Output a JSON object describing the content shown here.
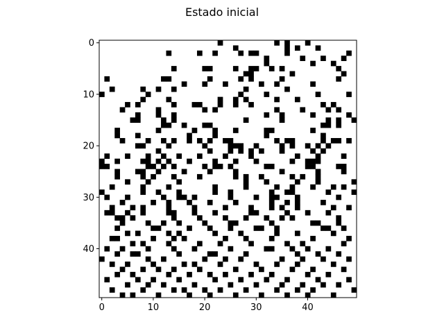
{
  "chart_data": {
    "type": "heatmap",
    "title": "Estado inicial",
    "xlabel": "",
    "ylabel": "",
    "grid_size": [
      50,
      50
    ],
    "x_ticks": [
      0,
      10,
      20,
      30,
      40
    ],
    "y_ticks": [
      0,
      10,
      20,
      30,
      40
    ],
    "colors": {
      "alive": "#000000",
      "dead": "#ffffff"
    },
    "grid": false,
    "alive_cells": [
      [
        0,
        23
      ],
      [
        0,
        34
      ],
      [
        0,
        36
      ],
      [
        0,
        40
      ],
      [
        1,
        26
      ],
      [
        1,
        36
      ],
      [
        1,
        38
      ],
      [
        1,
        42
      ],
      [
        2,
        13
      ],
      [
        2,
        19
      ],
      [
        2,
        22
      ],
      [
        2,
        27
      ],
      [
        2,
        29
      ],
      [
        2,
        30
      ],
      [
        2,
        36
      ],
      [
        2,
        48
      ],
      [
        3,
        32
      ],
      [
        3,
        39
      ],
      [
        3,
        43
      ],
      [
        3,
        47
      ],
      [
        4,
        32
      ],
      [
        4,
        41
      ],
      [
        4,
        45
      ],
      [
        5,
        14
      ],
      [
        5,
        20
      ],
      [
        5,
        21
      ],
      [
        5,
        26
      ],
      [
        5,
        29
      ],
      [
        5,
        30
      ],
      [
        5,
        33
      ],
      [
        5,
        35
      ],
      [
        5,
        46
      ],
      [
        6,
        28
      ],
      [
        6,
        29
      ],
      [
        6,
        37
      ],
      [
        6,
        47
      ],
      [
        7,
        1
      ],
      [
        7,
        12
      ],
      [
        7,
        13
      ],
      [
        7,
        21
      ],
      [
        7,
        27
      ],
      [
        7,
        29
      ],
      [
        7,
        35
      ],
      [
        7,
        46
      ],
      [
        8,
        16
      ],
      [
        8,
        20
      ],
      [
        8,
        24
      ],
      [
        8,
        31
      ],
      [
        8,
        34
      ],
      [
        8,
        41
      ],
      [
        9,
        2
      ],
      [
        9,
        8
      ],
      [
        9,
        11
      ],
      [
        9,
        14
      ],
      [
        9,
        28
      ],
      [
        9,
        36
      ],
      [
        10,
        0
      ],
      [
        10,
        9
      ],
      [
        10,
        27
      ],
      [
        10,
        32
      ],
      [
        10,
        42
      ],
      [
        10,
        48
      ],
      [
        11,
        8
      ],
      [
        11,
        13
      ],
      [
        11,
        23
      ],
      [
        11,
        26
      ],
      [
        11,
        28
      ],
      [
        11,
        34
      ],
      [
        11,
        38
      ],
      [
        12,
        5
      ],
      [
        12,
        7
      ],
      [
        12,
        14
      ],
      [
        12,
        18
      ],
      [
        12,
        19
      ],
      [
        12,
        23
      ],
      [
        12,
        26
      ],
      [
        12,
        29
      ],
      [
        12,
        43
      ],
      [
        12,
        45
      ],
      [
        13,
        4
      ],
      [
        13,
        11
      ],
      [
        13,
        20
      ],
      [
        13,
        22
      ],
      [
        13,
        34
      ],
      [
        13,
        39
      ],
      [
        13,
        44
      ],
      [
        13,
        46
      ],
      [
        14,
        7
      ],
      [
        14,
        11
      ],
      [
        14,
        14
      ],
      [
        14,
        32
      ],
      [
        14,
        35
      ],
      [
        14,
        41
      ],
      [
        14,
        48
      ],
      [
        15,
        6
      ],
      [
        15,
        7
      ],
      [
        15,
        12
      ],
      [
        15,
        14
      ],
      [
        15,
        28
      ],
      [
        15,
        35
      ],
      [
        15,
        44
      ],
      [
        15,
        46
      ],
      [
        15,
        49
      ],
      [
        16,
        12
      ],
      [
        16,
        13
      ],
      [
        16,
        16
      ],
      [
        16,
        20
      ],
      [
        16,
        21
      ],
      [
        16,
        43
      ],
      [
        16,
        44
      ],
      [
        16,
        46
      ],
      [
        17,
        3
      ],
      [
        17,
        11
      ],
      [
        17,
        18
      ],
      [
        17,
        22
      ],
      [
        17,
        26
      ],
      [
        17,
        32
      ],
      [
        17,
        33
      ],
      [
        17,
        41
      ],
      [
        18,
        3
      ],
      [
        18,
        7
      ],
      [
        18,
        17
      ],
      [
        18,
        22
      ],
      [
        18,
        32
      ],
      [
        18,
        43
      ],
      [
        19,
        4
      ],
      [
        19,
        9
      ],
      [
        19,
        12
      ],
      [
        19,
        14
      ],
      [
        19,
        17
      ],
      [
        19,
        19
      ],
      [
        19,
        21
      ],
      [
        19,
        24
      ],
      [
        19,
        25
      ],
      [
        19,
        34
      ],
      [
        19,
        36
      ],
      [
        19,
        37
      ],
      [
        19,
        43
      ],
      [
        19,
        45
      ],
      [
        19,
        46
      ],
      [
        19,
        48
      ],
      [
        20,
        7
      ],
      [
        20,
        8
      ],
      [
        20,
        13
      ],
      [
        20,
        20
      ],
      [
        20,
        25
      ],
      [
        20,
        26
      ],
      [
        20,
        27
      ],
      [
        20,
        30
      ],
      [
        20,
        35
      ],
      [
        20,
        37
      ],
      [
        20,
        40
      ],
      [
        20,
        42
      ],
      [
        20,
        44
      ],
      [
        21,
        11
      ],
      [
        21,
        21
      ],
      [
        21,
        25
      ],
      [
        21,
        27
      ],
      [
        21,
        29
      ],
      [
        21,
        31
      ],
      [
        21,
        35
      ],
      [
        21,
        41
      ],
      [
        21,
        43
      ],
      [
        22,
        1
      ],
      [
        22,
        5
      ],
      [
        22,
        9
      ],
      [
        22,
        12
      ],
      [
        22,
        15
      ],
      [
        22,
        19
      ],
      [
        22,
        24
      ],
      [
        22,
        29
      ],
      [
        22,
        38
      ],
      [
        22,
        42
      ],
      [
        22,
        47
      ],
      [
        23,
        0
      ],
      [
        23,
        3
      ],
      [
        23,
        8
      ],
      [
        23,
        9
      ],
      [
        23,
        11
      ],
      [
        23,
        13
      ],
      [
        23,
        17
      ],
      [
        23,
        22
      ],
      [
        23,
        26
      ],
      [
        23,
        30
      ],
      [
        23,
        37
      ],
      [
        23,
        40
      ],
      [
        23,
        41
      ],
      [
        23,
        42
      ],
      [
        24,
        0
      ],
      [
        24,
        1
      ],
      [
        24,
        9
      ],
      [
        24,
        10
      ],
      [
        24,
        12
      ],
      [
        24,
        14
      ],
      [
        24,
        20
      ],
      [
        24,
        22
      ],
      [
        24,
        23
      ],
      [
        24,
        25
      ],
      [
        24,
        32
      ],
      [
        24,
        33
      ],
      [
        24,
        40
      ],
      [
        24,
        41
      ],
      [
        24,
        46
      ],
      [
        24,
        47
      ],
      [
        25,
        3
      ],
      [
        25,
        7
      ],
      [
        25,
        8
      ],
      [
        25,
        11
      ],
      [
        25,
        16
      ],
      [
        25,
        21
      ],
      [
        25,
        26
      ],
      [
        25,
        35
      ],
      [
        25,
        42
      ],
      [
        25,
        47
      ],
      [
        26,
        3
      ],
      [
        26,
        8
      ],
      [
        26,
        10
      ],
      [
        26,
        14
      ],
      [
        26,
        19
      ],
      [
        26,
        26
      ],
      [
        26,
        28
      ],
      [
        26,
        31
      ],
      [
        26,
        37
      ],
      [
        26,
        39
      ],
      [
        26,
        42
      ],
      [
        27,
        5
      ],
      [
        27,
        9
      ],
      [
        27,
        15
      ],
      [
        27,
        28
      ],
      [
        27,
        32
      ],
      [
        27,
        38
      ],
      [
        27,
        42
      ],
      [
        27,
        49
      ],
      [
        28,
        2
      ],
      [
        28,
        8
      ],
      [
        28,
        13
      ],
      [
        28,
        22
      ],
      [
        28,
        28
      ],
      [
        28,
        34
      ],
      [
        28,
        37
      ],
      [
        28,
        41
      ],
      [
        28,
        45
      ],
      [
        28,
        47
      ],
      [
        29,
        0
      ],
      [
        29,
        8
      ],
      [
        29,
        11
      ],
      [
        29,
        15
      ],
      [
        29,
        22
      ],
      [
        29,
        25
      ],
      [
        29,
        33
      ],
      [
        29,
        36
      ],
      [
        29,
        37
      ],
      [
        29,
        44
      ],
      [
        29,
        49
      ],
      [
        30,
        1
      ],
      [
        30,
        5
      ],
      [
        30,
        12
      ],
      [
        30,
        15
      ],
      [
        30,
        16
      ],
      [
        30,
        18
      ],
      [
        30,
        25
      ],
      [
        30,
        30
      ],
      [
        30,
        33
      ],
      [
        30,
        34
      ],
      [
        30,
        38
      ],
      [
        30,
        46
      ],
      [
        31,
        4
      ],
      [
        31,
        10
      ],
      [
        31,
        13
      ],
      [
        31,
        17
      ],
      [
        31,
        21
      ],
      [
        31,
        26
      ],
      [
        31,
        33
      ],
      [
        31,
        36
      ],
      [
        31,
        38
      ],
      [
        31,
        43
      ],
      [
        32,
        2
      ],
      [
        32,
        6
      ],
      [
        32,
        8
      ],
      [
        32,
        13
      ],
      [
        32,
        18
      ],
      [
        32,
        24
      ],
      [
        32,
        29
      ],
      [
        32,
        33
      ],
      [
        32,
        35
      ],
      [
        32,
        38
      ],
      [
        32,
        45
      ],
      [
        32,
        48
      ],
      [
        33,
        1
      ],
      [
        33,
        2
      ],
      [
        33,
        5
      ],
      [
        33,
        8
      ],
      [
        33,
        13
      ],
      [
        33,
        14
      ],
      [
        33,
        18
      ],
      [
        33,
        22
      ],
      [
        33,
        29
      ],
      [
        33,
        30
      ],
      [
        33,
        36
      ],
      [
        33,
        40
      ],
      [
        33,
        44
      ],
      [
        34,
        3
      ],
      [
        34,
        4
      ],
      [
        34,
        6
      ],
      [
        34,
        14
      ],
      [
        34,
        19
      ],
      [
        34,
        24
      ],
      [
        34,
        28
      ],
      [
        34,
        32
      ],
      [
        34,
        35
      ],
      [
        34,
        37
      ],
      [
        34,
        46
      ],
      [
        35,
        4
      ],
      [
        35,
        9
      ],
      [
        35,
        12
      ],
      [
        35,
        15
      ],
      [
        35,
        20
      ],
      [
        35,
        25
      ],
      [
        35,
        26
      ],
      [
        35,
        33
      ],
      [
        35,
        41
      ],
      [
        35,
        42
      ],
      [
        35,
        46
      ],
      [
        36,
        3
      ],
      [
        36,
        10
      ],
      [
        36,
        11
      ],
      [
        36,
        17
      ],
      [
        36,
        21
      ],
      [
        36,
        25
      ],
      [
        36,
        30
      ],
      [
        36,
        31
      ],
      [
        36,
        34
      ],
      [
        36,
        43
      ],
      [
        36,
        44
      ],
      [
        36,
        47
      ],
      [
        37,
        5
      ],
      [
        37,
        7
      ],
      [
        37,
        13
      ],
      [
        37,
        15
      ],
      [
        37,
        22
      ],
      [
        37,
        27
      ],
      [
        37,
        34
      ],
      [
        37,
        38
      ],
      [
        37,
        45
      ],
      [
        38,
        2
      ],
      [
        38,
        3
      ],
      [
        38,
        10
      ],
      [
        38,
        14
      ],
      [
        38,
        16
      ],
      [
        38,
        24
      ],
      [
        38,
        28
      ],
      [
        38,
        33
      ],
      [
        38,
        41
      ],
      [
        38,
        48
      ],
      [
        39,
        6
      ],
      [
        39,
        8
      ],
      [
        39,
        13
      ],
      [
        39,
        19
      ],
      [
        39,
        23
      ],
      [
        39,
        29
      ],
      [
        39,
        36
      ],
      [
        39,
        39
      ],
      [
        39,
        47
      ],
      [
        40,
        1
      ],
      [
        40,
        4
      ],
      [
        40,
        9
      ],
      [
        40,
        14
      ],
      [
        40,
        18
      ],
      [
        40,
        25
      ],
      [
        40,
        32
      ],
      [
        40,
        33
      ],
      [
        40,
        37
      ],
      [
        40,
        40
      ],
      [
        40,
        44
      ],
      [
        41,
        3
      ],
      [
        41,
        6
      ],
      [
        41,
        7
      ],
      [
        41,
        15
      ],
      [
        41,
        21
      ],
      [
        41,
        22
      ],
      [
        41,
        28
      ],
      [
        41,
        38
      ],
      [
        41,
        42
      ],
      [
        41,
        46
      ],
      [
        42,
        0
      ],
      [
        42,
        9
      ],
      [
        42,
        12
      ],
      [
        42,
        20
      ],
      [
        42,
        24
      ],
      [
        42,
        27
      ],
      [
        42,
        35
      ],
      [
        42,
        39
      ],
      [
        42,
        43
      ],
      [
        42,
        48
      ],
      [
        43,
        2
      ],
      [
        43,
        5
      ],
      [
        43,
        10
      ],
      [
        43,
        16
      ],
      [
        43,
        18
      ],
      [
        43,
        23
      ],
      [
        43,
        30
      ],
      [
        43,
        34
      ],
      [
        43,
        38
      ],
      [
        43,
        45
      ],
      [
        44,
        4
      ],
      [
        44,
        8
      ],
      [
        44,
        11
      ],
      [
        44,
        14
      ],
      [
        44,
        19
      ],
      [
        44,
        26
      ],
      [
        44,
        31
      ],
      [
        44,
        37
      ],
      [
        44,
        41
      ],
      [
        44,
        47
      ],
      [
        45,
        3
      ],
      [
        45,
        6
      ],
      [
        45,
        13
      ],
      [
        45,
        17
      ],
      [
        45,
        21
      ],
      [
        45,
        24
      ],
      [
        45,
        29
      ],
      [
        45,
        33
      ],
      [
        45,
        40
      ],
      [
        45,
        44
      ],
      [
        46,
        1
      ],
      [
        46,
        7
      ],
      [
        46,
        10
      ],
      [
        46,
        15
      ],
      [
        46,
        22
      ],
      [
        46,
        27
      ],
      [
        46,
        32
      ],
      [
        46,
        36
      ],
      [
        46,
        42
      ],
      [
        46,
        48
      ],
      [
        47,
        5
      ],
      [
        47,
        9
      ],
      [
        47,
        12
      ],
      [
        47,
        18
      ],
      [
        47,
        25
      ],
      [
        47,
        30
      ],
      [
        47,
        35
      ],
      [
        47,
        39
      ],
      [
        47,
        43
      ],
      [
        47,
        46
      ],
      [
        48,
        2
      ],
      [
        48,
        8
      ],
      [
        48,
        14
      ],
      [
        48,
        16
      ],
      [
        48,
        20
      ],
      [
        48,
        23
      ],
      [
        48,
        28
      ],
      [
        48,
        34
      ],
      [
        48,
        38
      ],
      [
        48,
        41
      ],
      [
        48,
        49
      ],
      [
        49,
        4
      ],
      [
        49,
        6
      ],
      [
        49,
        11
      ],
      [
        49,
        17
      ],
      [
        49,
        21
      ],
      [
        49,
        26
      ],
      [
        49,
        31
      ],
      [
        49,
        36
      ],
      [
        49,
        40
      ],
      [
        49,
        45
      ]
    ]
  }
}
